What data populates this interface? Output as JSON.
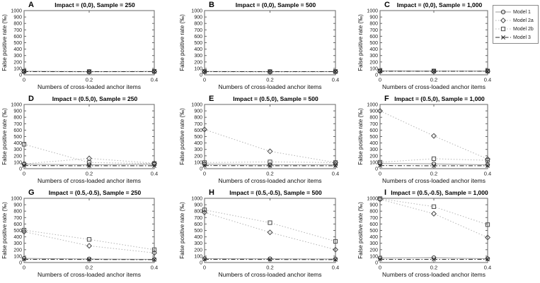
{
  "figure": {
    "y_label": "False positive rate (‰)",
    "x_label": "Numbers of cross-loaded anchor items",
    "x_ticks": [
      0,
      0.2,
      0.4
    ],
    "x_tick_labels": [
      "0",
      "0.2",
      "0.4"
    ],
    "y_ticks": [
      0,
      100,
      200,
      300,
      400,
      500,
      600,
      700,
      800,
      900,
      1000
    ],
    "ylim": [
      0,
      1000
    ],
    "xlim": [
      0,
      0.4
    ],
    "grid": false,
    "legend_position": "top-right-outside"
  },
  "legend": {
    "entries": [
      {
        "label": "Model 1",
        "marker": "circle",
        "line": "solid"
      },
      {
        "label": "Model 2a",
        "marker": "diamond",
        "line": "dotted"
      },
      {
        "label": "Model 2b",
        "marker": "square",
        "line": "dotted"
      },
      {
        "label": "Model 3",
        "marker": "x",
        "line": "dashdot"
      }
    ]
  },
  "series_styles": {
    "Model 1": {
      "marker": "circle",
      "line": "solid",
      "line_color": "#9b9b9b",
      "marker_color": "#3a3a3a"
    },
    "Model 2a": {
      "marker": "diamond",
      "line": "dotted",
      "line_color": "#b4b4b4",
      "marker_color": "#4a4a4a"
    },
    "Model 2b": {
      "marker": "square",
      "line": "dotted",
      "line_color": "#b4b4b4",
      "marker_color": "#4a4a4a"
    },
    "Model 3": {
      "marker": "x",
      "line": "dashdot",
      "line_color": "#2b2b2b",
      "marker_color": "#2b2b2b"
    }
  },
  "chart_data": [
    {
      "type": "line",
      "panel": "A",
      "title": "Impact = (0,0), Sample = 250",
      "x": [
        0,
        0.2,
        0.4
      ],
      "series": [
        {
          "name": "Model 1",
          "values": [
            55,
            50,
            52
          ]
        },
        {
          "name": "Model 2a",
          "values": [
            50,
            46,
            50
          ]
        },
        {
          "name": "Model 2b",
          "values": [
            56,
            50,
            55
          ]
        },
        {
          "name": "Model 3",
          "values": [
            50,
            50,
            50
          ]
        }
      ]
    },
    {
      "type": "line",
      "panel": "B",
      "title": "Impact = (0,0), Sample = 500",
      "x": [
        0,
        0.2,
        0.4
      ],
      "series": [
        {
          "name": "Model 1",
          "values": [
            52,
            50,
            50
          ]
        },
        {
          "name": "Model 2a",
          "values": [
            48,
            45,
            48
          ]
        },
        {
          "name": "Model 2b",
          "values": [
            52,
            50,
            52
          ]
        },
        {
          "name": "Model 3",
          "values": [
            50,
            50,
            50
          ]
        }
      ]
    },
    {
      "type": "line",
      "panel": "C",
      "title": "Impact = (0,0), Sample = 1,000",
      "x": [
        0,
        0.2,
        0.4
      ],
      "series": [
        {
          "name": "Model 1",
          "values": [
            60,
            58,
            58
          ]
        },
        {
          "name": "Model 2a",
          "values": [
            55,
            52,
            55
          ]
        },
        {
          "name": "Model 2b",
          "values": [
            62,
            60,
            60
          ]
        },
        {
          "name": "Model 3",
          "values": [
            55,
            55,
            55
          ]
        }
      ]
    },
    {
      "type": "line",
      "panel": "D",
      "title": "Impact = (0.5,0), Sample = 250",
      "x": [
        0,
        0.2,
        0.4
      ],
      "series": [
        {
          "name": "Model 1",
          "values": [
            70,
            60,
            68
          ]
        },
        {
          "name": "Model 2a",
          "values": [
            75,
            160,
            85
          ]
        },
        {
          "name": "Model 2b",
          "values": [
            380,
            95,
            80
          ]
        },
        {
          "name": "Model 3",
          "values": [
            48,
            45,
            45
          ]
        }
      ]
    },
    {
      "type": "line",
      "panel": "E",
      "title": "Impact = (0.5,0), Sample = 500",
      "x": [
        0,
        0.2,
        0.4
      ],
      "series": [
        {
          "name": "Model 1",
          "values": [
            70,
            60,
            63
          ]
        },
        {
          "name": "Model 2a",
          "values": [
            610,
            270,
            95
          ]
        },
        {
          "name": "Model 2b",
          "values": [
            95,
            105,
            95
          ]
        },
        {
          "name": "Model 3",
          "values": [
            48,
            45,
            45
          ]
        }
      ]
    },
    {
      "type": "line",
      "panel": "F",
      "title": "Impact = (0.5,0), Sample = 1,000",
      "x": [
        0,
        0.2,
        0.4
      ],
      "series": [
        {
          "name": "Model 1",
          "values": [
            80,
            75,
            60
          ]
        },
        {
          "name": "Model 2a",
          "values": [
            900,
            510,
            150
          ]
        },
        {
          "name": "Model 2b",
          "values": [
            100,
            155,
            130
          ]
        },
        {
          "name": "Model 3",
          "values": [
            48,
            45,
            45
          ]
        }
      ]
    },
    {
      "type": "line",
      "panel": "G",
      "title": "Impact = (0.5,-0.5), Sample = 250",
      "x": [
        0,
        0.2,
        0.4
      ],
      "series": [
        {
          "name": "Model 1",
          "values": [
            65,
            55,
            50
          ]
        },
        {
          "name": "Model 2a",
          "values": [
            480,
            260,
            150
          ]
        },
        {
          "name": "Model 2b",
          "values": [
            505,
            360,
            200
          ]
        },
        {
          "name": "Model 3",
          "values": [
            50,
            48,
            45
          ]
        }
      ]
    },
    {
      "type": "line",
      "panel": "H",
      "title": "Impact = (0.5,-0.5), Sample = 500",
      "x": [
        0,
        0.2,
        0.4
      ],
      "series": [
        {
          "name": "Model 1",
          "values": [
            60,
            58,
            55
          ]
        },
        {
          "name": "Model 2a",
          "values": [
            780,
            470,
            200
          ]
        },
        {
          "name": "Model 2b",
          "values": [
            820,
            620,
            330
          ]
        },
        {
          "name": "Model 3",
          "values": [
            50,
            48,
            45
          ]
        }
      ]
    },
    {
      "type": "line",
      "panel": "I",
      "title": "Impact = (0.5,-0.5), Sample = 1,000",
      "x": [
        0,
        0.2,
        0.4
      ],
      "series": [
        {
          "name": "Model 1",
          "values": [
            70,
            75,
            60
          ]
        },
        {
          "name": "Model 2a",
          "values": [
            985,
            760,
            390
          ]
        },
        {
          "name": "Model 2b",
          "values": [
            995,
            870,
            590
          ]
        },
        {
          "name": "Model 3",
          "values": [
            50,
            50,
            50
          ]
        }
      ]
    }
  ]
}
